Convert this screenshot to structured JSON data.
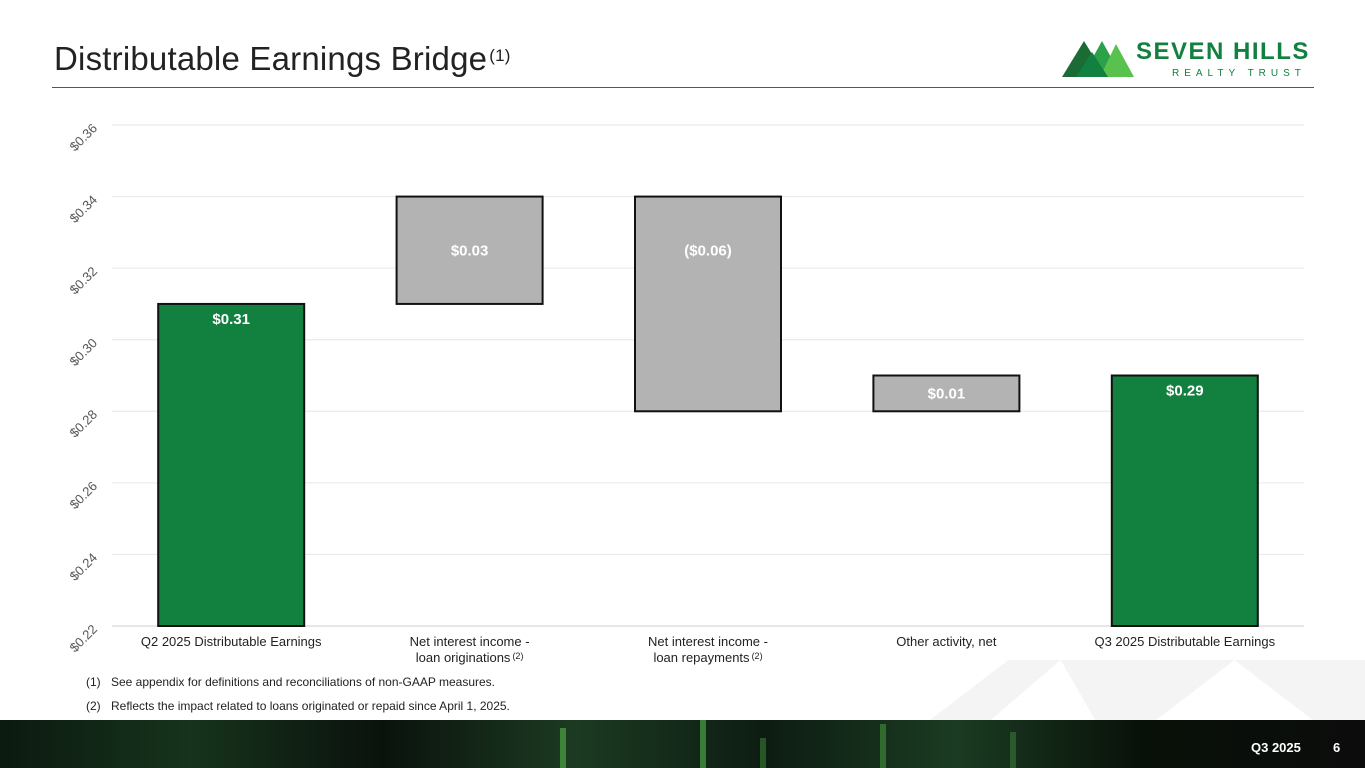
{
  "header": {
    "title": "Distributable Earnings Bridge",
    "title_note": "(1)",
    "logo_name": "SEVEN HILLS",
    "logo_sub": "REALTY TRUST"
  },
  "colors": {
    "green": "#12803f",
    "gray": "#b3b3b3",
    "accent_dark_green": "#1b6b35",
    "accent_light_green": "#59c24e"
  },
  "chart_data": {
    "type": "bar",
    "subtype": "waterfall",
    "title": "",
    "xlabel": "",
    "ylabel": "",
    "ylim": [
      0.22,
      0.36
    ],
    "yticks": [
      "$0.22",
      "$0.24",
      "$0.26",
      "$0.28",
      "$0.30",
      "$0.32",
      "$0.34",
      "$0.36"
    ],
    "ytick_values": [
      0.22,
      0.24,
      0.26,
      0.28,
      0.3,
      0.32,
      0.34,
      0.36
    ],
    "grid": true,
    "legend": "none",
    "categories": [
      {
        "lines": [
          "Q2 2025 Distributable Earnings"
        ],
        "note": ""
      },
      {
        "lines": [
          "Net interest income -",
          "loan originations"
        ],
        "note": "(2)"
      },
      {
        "lines": [
          "Net interest income -",
          "loan repayments"
        ],
        "note": "(2)"
      },
      {
        "lines": [
          "Other activity, net"
        ],
        "note": ""
      },
      {
        "lines": [
          "Q3 2025 Distributable Earnings"
        ],
        "note": ""
      }
    ],
    "bars": [
      {
        "start": 0.22,
        "end": 0.31,
        "label": "$0.31",
        "kind": "total"
      },
      {
        "start": 0.31,
        "end": 0.34,
        "label": "$0.03",
        "kind": "change"
      },
      {
        "start": 0.34,
        "end": 0.28,
        "label": "($0.06)",
        "kind": "change"
      },
      {
        "start": 0.28,
        "end": 0.29,
        "label": "$0.01",
        "kind": "change"
      },
      {
        "start": 0.22,
        "end": 0.29,
        "label": "$0.29",
        "kind": "total"
      }
    ]
  },
  "footnotes": [
    {
      "num": "(1)",
      "text": "See appendix for definitions and reconciliations of non-GAAP measures."
    },
    {
      "num": "(2)",
      "text": "Reflects the impact related to loans originated or repaid since April 1, 2025."
    }
  ],
  "footer": {
    "period": "Q3 2025",
    "page": "6"
  }
}
